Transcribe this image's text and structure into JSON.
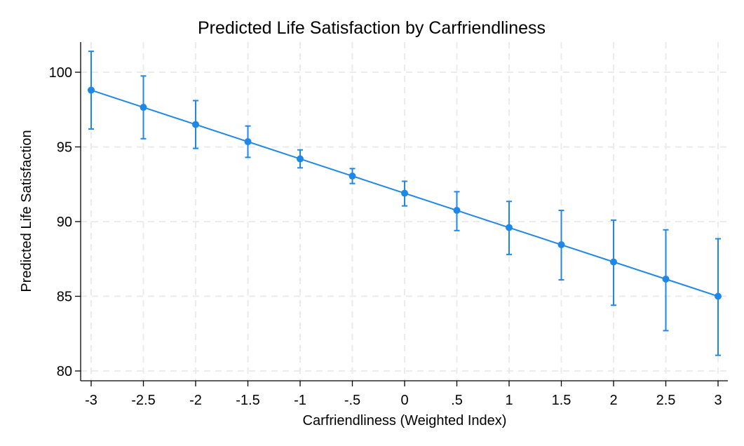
{
  "chart_data": {
    "type": "line",
    "title": "Predicted Life Satisfaction by Carfriendliness",
    "xlabel": "Carfriendliness (Weighted Index)",
    "ylabel": "Predicted Life Satisfaction",
    "x": [
      -3,
      -2.5,
      -2,
      -1.5,
      -1,
      -0.5,
      0,
      0.5,
      1,
      1.5,
      2,
      2.5,
      3
    ],
    "x_tick_labels": [
      "-3",
      "-2.5",
      "-2",
      "-1.5",
      "-1",
      "-.5",
      "0",
      ".5",
      "1",
      "1.5",
      "2",
      "2.5",
      "3"
    ],
    "y_ticks": [
      80,
      85,
      90,
      95,
      100
    ],
    "y_tick_labels": [
      "80",
      "85",
      "90",
      "95",
      "100"
    ],
    "xlim": [
      -3,
      3
    ],
    "ylim": [
      80,
      102
    ],
    "grid": true,
    "series": [
      {
        "values": [
          98.8,
          97.65,
          96.5,
          95.35,
          94.2,
          93.05,
          91.9,
          90.75,
          89.6,
          88.45,
          87.3,
          86.15,
          85.0
        ],
        "ci_low": [
          96.2,
          95.55,
          94.9,
          94.3,
          93.6,
          92.55,
          91.05,
          89.4,
          87.8,
          86.1,
          84.4,
          82.7,
          81.05
        ],
        "ci_high": [
          101.4,
          99.75,
          98.1,
          96.4,
          94.8,
          93.55,
          92.7,
          92.0,
          91.35,
          90.75,
          90.1,
          89.45,
          88.85
        ],
        "color": "#1f87e8"
      }
    ]
  }
}
